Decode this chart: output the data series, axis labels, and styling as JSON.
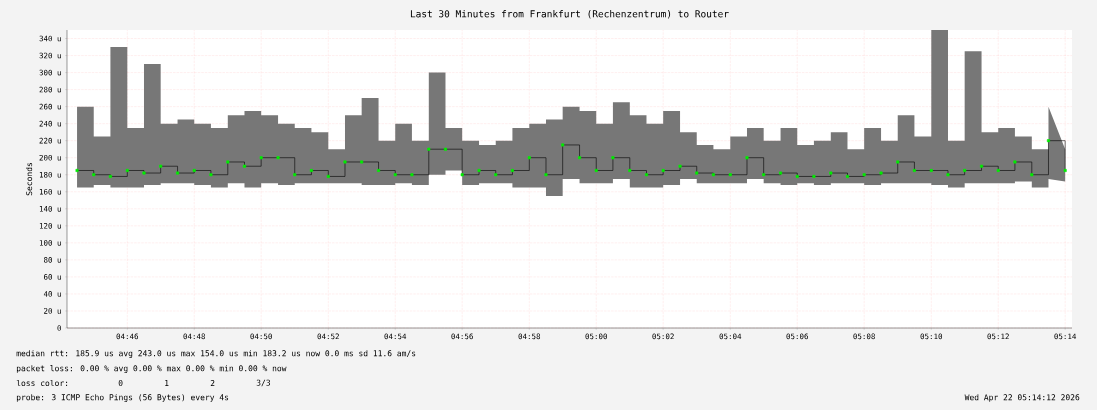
{
  "chart_data": {
    "type": "step",
    "title": "Last 30 Minutes from Frankfurt (Rechenzentrum) to Router",
    "ylabel": "Seconds",
    "x": [
      4.7417,
      4.75,
      4.7583,
      4.7667,
      4.775,
      4.7833,
      4.7917,
      4.8,
      4.8083,
      4.8167,
      4.825,
      4.8333,
      4.8417,
      4.85,
      4.8583,
      4.8667,
      4.875,
      4.8833,
      4.8917,
      4.9,
      4.9083,
      4.9167,
      4.925,
      4.9333,
      4.9417,
      4.95,
      4.9583,
      4.9667,
      4.975,
      4.9833,
      4.9917,
      5.0,
      5.0083,
      5.0167,
      5.025,
      5.0333,
      5.0417,
      5.05,
      5.0583,
      5.0667,
      5.075,
      5.0833,
      5.0917,
      5.1,
      5.1083,
      5.1167,
      5.125,
      5.1333,
      5.1417,
      5.15,
      5.1583,
      5.1667,
      5.175,
      5.1833,
      5.1917,
      5.2,
      5.2083,
      5.2167,
      5.225,
      5.2333
    ],
    "series": [
      {
        "color": "#00ee00",
        "values": [
          185,
          180,
          178,
          185,
          182,
          190,
          182,
          185,
          180,
          195,
          190,
          200,
          200,
          180,
          185,
          178,
          195,
          195,
          185,
          180,
          180,
          210,
          210,
          180,
          185,
          180,
          185,
          200,
          180,
          215,
          200,
          185,
          200,
          185,
          180,
          185,
          190,
          182,
          180,
          180,
          200,
          180,
          182,
          178,
          178,
          182,
          178,
          180,
          182,
          195,
          185,
          185,
          180,
          185,
          190,
          185,
          195,
          180,
          220,
          185
        ],
        "lower": [
          165,
          168,
          165,
          165,
          168,
          170,
          170,
          168,
          165,
          170,
          165,
          170,
          168,
          170,
          170,
          170,
          170,
          168,
          168,
          170,
          168,
          180,
          185,
          168,
          170,
          170,
          165,
          165,
          155,
          175,
          170,
          170,
          175,
          165,
          165,
          168,
          175,
          170,
          170,
          170,
          175,
          170,
          168,
          170,
          168,
          170,
          170,
          168,
          170,
          170,
          170,
          168,
          165,
          170,
          170,
          170,
          172,
          165,
          175,
          172
        ],
        "upper": [
          260,
          225,
          330,
          235,
          310,
          240,
          245,
          240,
          235,
          250,
          255,
          250,
          240,
          235,
          230,
          210,
          250,
          270,
          220,
          240,
          220,
          300,
          235,
          220,
          215,
          220,
          235,
          240,
          245,
          260,
          255,
          240,
          265,
          250,
          240,
          255,
          230,
          215,
          210,
          225,
          235,
          220,
          235,
          215,
          220,
          230,
          210,
          235,
          220,
          250,
          225,
          350,
          220,
          325,
          230,
          235,
          225,
          210,
          260,
          210
        ]
      }
    ],
    "xlim": [
      4.7367,
      5.2367
    ],
    "ylim": [
      0,
      350
    ],
    "xticks": [
      {
        "value": 4.7667,
        "label": "04:46"
      },
      {
        "value": 4.8,
        "label": "04:48"
      },
      {
        "value": 4.8333,
        "label": "04:50"
      },
      {
        "value": 4.8667,
        "label": "04:52"
      },
      {
        "value": 4.9,
        "label": "04:54"
      },
      {
        "value": 4.9333,
        "label": "04:56"
      },
      {
        "value": 4.9667,
        "label": "04:58"
      },
      {
        "value": 5.0,
        "label": "05:00"
      },
      {
        "value": 5.0333,
        "label": "05:02"
      },
      {
        "value": 5.0667,
        "label": "05:04"
      },
      {
        "value": 5.1,
        "label": "05:06"
      },
      {
        "value": 5.1333,
        "label": "05:08"
      },
      {
        "value": 5.1667,
        "label": "05:10"
      },
      {
        "value": 5.2,
        "label": "05:12"
      },
      {
        "value": 5.2333,
        "label": "05:14"
      }
    ],
    "yticks": [
      0,
      {
        "value": 20,
        "label": "20 u"
      },
      {
        "value": 40,
        "label": "40 u"
      },
      {
        "value": 60,
        "label": "60 u"
      },
      {
        "value": 80,
        "label": "80 u"
      },
      {
        "value": 100,
        "label": "100 u"
      },
      {
        "value": 120,
        "label": "120 u"
      },
      {
        "value": 140,
        "label": "140 u"
      },
      {
        "value": 160,
        "label": "160 u"
      },
      {
        "value": 180,
        "label": "180 u"
      },
      {
        "value": 200,
        "label": "200 u"
      },
      {
        "value": 220,
        "label": "220 u"
      },
      {
        "value": 240,
        "label": "240 u"
      },
      {
        "value": 260,
        "label": "260 u"
      },
      {
        "value": 280,
        "label": "280 u"
      },
      {
        "value": 300,
        "label": "300 u"
      },
      {
        "value": 320,
        "label": "320 u"
      },
      {
        "value": 340,
        "label": "340 u"
      }
    ],
    "grid": true,
    "marker": "square",
    "annotations": [
      "median rtt:  185.9 us avg  243.0 us max  154.0 us min  183.2 us now  0.0 ms sd  11.6  am/s",
      "packet loss: 0.00 % avg  0.00 % max  0.00 % min  0.00 % now",
      "loss color:",
      "0",
      "1",
      "2",
      "3/3",
      "probe:       3 ICMP Echo Pings (56 Bytes) every 4s",
      "Wed Apr 22 05:14:12 2026"
    ]
  }
}
